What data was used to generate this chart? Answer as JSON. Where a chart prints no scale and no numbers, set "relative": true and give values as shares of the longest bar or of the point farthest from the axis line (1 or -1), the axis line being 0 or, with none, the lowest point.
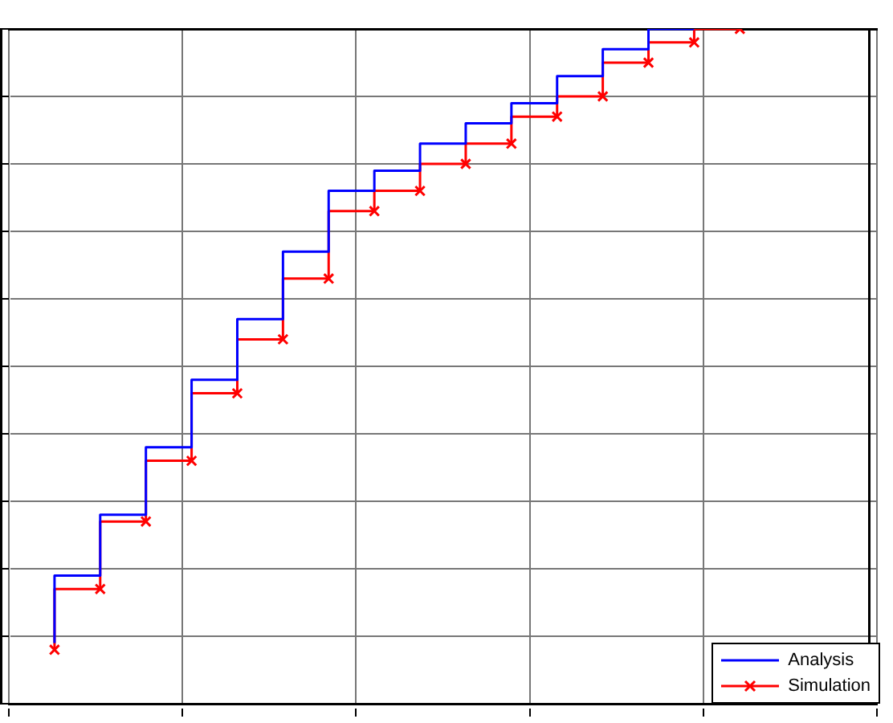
{
  "chart_data": {
    "type": "step",
    "relative": true,
    "grid": true,
    "legend": "bottom right",
    "line_style": "solid",
    "categories": [
      null,
      null,
      null,
      null,
      null,
      null,
      null,
      null,
      null,
      null,
      null,
      null,
      null,
      null,
      null,
      null,
      null,
      null,
      null,
      null
    ],
    "series": [
      {
        "name": "Analysis",
        "color": "#0000ff",
        "marker": "none",
        "values": [
          null,
          0.09,
          0.19,
          0.28,
          0.38,
          0.48,
          0.57,
          0.67,
          0.76,
          0.79,
          0.83,
          0.86,
          0.89,
          0.93,
          0.97,
          1,
          null,
          null,
          null,
          null
        ]
      },
      {
        "name": "Simulation",
        "color": "#ff0000",
        "marker": "cross",
        "values": [
          null,
          0.08,
          0.17,
          0.27,
          0.36,
          0.46,
          0.54,
          0.63,
          0.73,
          0.76,
          0.8,
          0.83,
          0.87,
          0.9,
          0.95,
          0.98,
          1,
          null,
          null,
          null
        ]
      }
    ]
  }
}
